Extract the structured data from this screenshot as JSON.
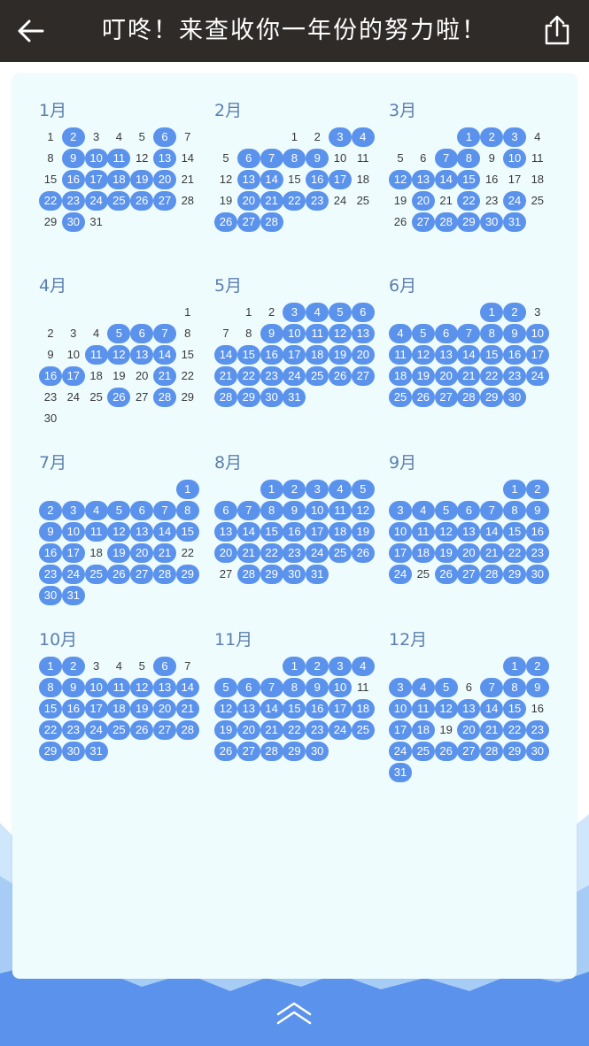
{
  "header": {
    "title": "叮咚！来查收你一年份的努力啦！",
    "back_icon": "arrow-left-icon",
    "share_icon": "share-icon",
    "background": "#2f2b29"
  },
  "colors": {
    "checked_day": "#5b93ec",
    "card_background": "#effcfe",
    "mountain_dark": "#5b93ec",
    "mountain_light": "#cfe6fb"
  },
  "year_calendar": [
    {
      "label": "1月",
      "start_weekday": 0,
      "days": 31,
      "checked": [
        2,
        6,
        9,
        10,
        11,
        13,
        16,
        17,
        18,
        19,
        20,
        22,
        23,
        24,
        25,
        26,
        27,
        30
      ]
    },
    {
      "label": "2月",
      "start_weekday": 3,
      "days": 28,
      "checked": [
        3,
        4,
        6,
        7,
        8,
        9,
        13,
        14,
        16,
        17,
        20,
        21,
        22,
        23,
        26,
        27,
        28
      ]
    },
    {
      "label": "3月",
      "start_weekday": 3,
      "days": 31,
      "checked": [
        1,
        2,
        3,
        7,
        8,
        10,
        12,
        13,
        14,
        15,
        20,
        22,
        24,
        27,
        28,
        29,
        30,
        31
      ]
    },
    {
      "label": "4月",
      "start_weekday": 6,
      "days": 30,
      "checked": [
        5,
        6,
        7,
        11,
        12,
        13,
        14,
        16,
        17,
        21,
        26,
        28
      ]
    },
    {
      "label": "5月",
      "start_weekday": 1,
      "days": 31,
      "checked": [
        3,
        4,
        5,
        6,
        9,
        10,
        11,
        12,
        13,
        14,
        15,
        16,
        17,
        18,
        19,
        20,
        21,
        22,
        23,
        24,
        25,
        26,
        27,
        28,
        29,
        30,
        31
      ]
    },
    {
      "label": "6月",
      "start_weekday": 4,
      "days": 30,
      "checked": [
        1,
        2,
        4,
        5,
        6,
        7,
        8,
        9,
        10,
        11,
        12,
        13,
        14,
        15,
        16,
        17,
        18,
        19,
        20,
        21,
        22,
        23,
        24,
        25,
        26,
        27,
        28,
        29,
        30
      ]
    },
    {
      "label": "7月",
      "start_weekday": 6,
      "days": 31,
      "checked": [
        1,
        2,
        3,
        4,
        5,
        6,
        7,
        8,
        9,
        10,
        11,
        12,
        13,
        14,
        15,
        16,
        17,
        19,
        20,
        21,
        23,
        24,
        25,
        26,
        27,
        28,
        29,
        30,
        31
      ]
    },
    {
      "label": "8月",
      "start_weekday": 2,
      "days": 31,
      "checked": [
        1,
        2,
        3,
        4,
        5,
        6,
        7,
        8,
        9,
        10,
        11,
        12,
        13,
        14,
        15,
        16,
        17,
        18,
        19,
        20,
        21,
        22,
        23,
        24,
        25,
        26,
        28,
        29,
        30,
        31
      ]
    },
    {
      "label": "9月",
      "start_weekday": 5,
      "days": 30,
      "checked": [
        1,
        2,
        3,
        4,
        5,
        6,
        7,
        8,
        9,
        10,
        11,
        12,
        13,
        14,
        15,
        16,
        17,
        18,
        19,
        20,
        21,
        22,
        23,
        24,
        26,
        27,
        28,
        29,
        30
      ]
    },
    {
      "label": "10月",
      "start_weekday": 0,
      "days": 31,
      "checked": [
        1,
        2,
        6,
        8,
        9,
        10,
        11,
        12,
        13,
        14,
        15,
        16,
        17,
        18,
        19,
        20,
        21,
        22,
        23,
        24,
        25,
        26,
        27,
        28,
        29,
        30,
        31
      ]
    },
    {
      "label": "11月",
      "start_weekday": 3,
      "days": 30,
      "checked": [
        1,
        2,
        3,
        4,
        5,
        6,
        7,
        8,
        9,
        10,
        12,
        13,
        14,
        15,
        16,
        17,
        18,
        19,
        20,
        21,
        22,
        23,
        24,
        25,
        26,
        27,
        28,
        29,
        30
      ]
    },
    {
      "label": "12月",
      "start_weekday": 5,
      "days": 31,
      "checked": [
        1,
        2,
        3,
        4,
        5,
        7,
        8,
        9,
        10,
        11,
        12,
        13,
        14,
        15,
        17,
        18,
        20,
        21,
        22,
        23,
        24,
        25,
        26,
        27,
        28,
        29,
        30,
        31
      ]
    }
  ],
  "footer": {
    "scroll_up_icon": "double-chevron-up-icon"
  }
}
